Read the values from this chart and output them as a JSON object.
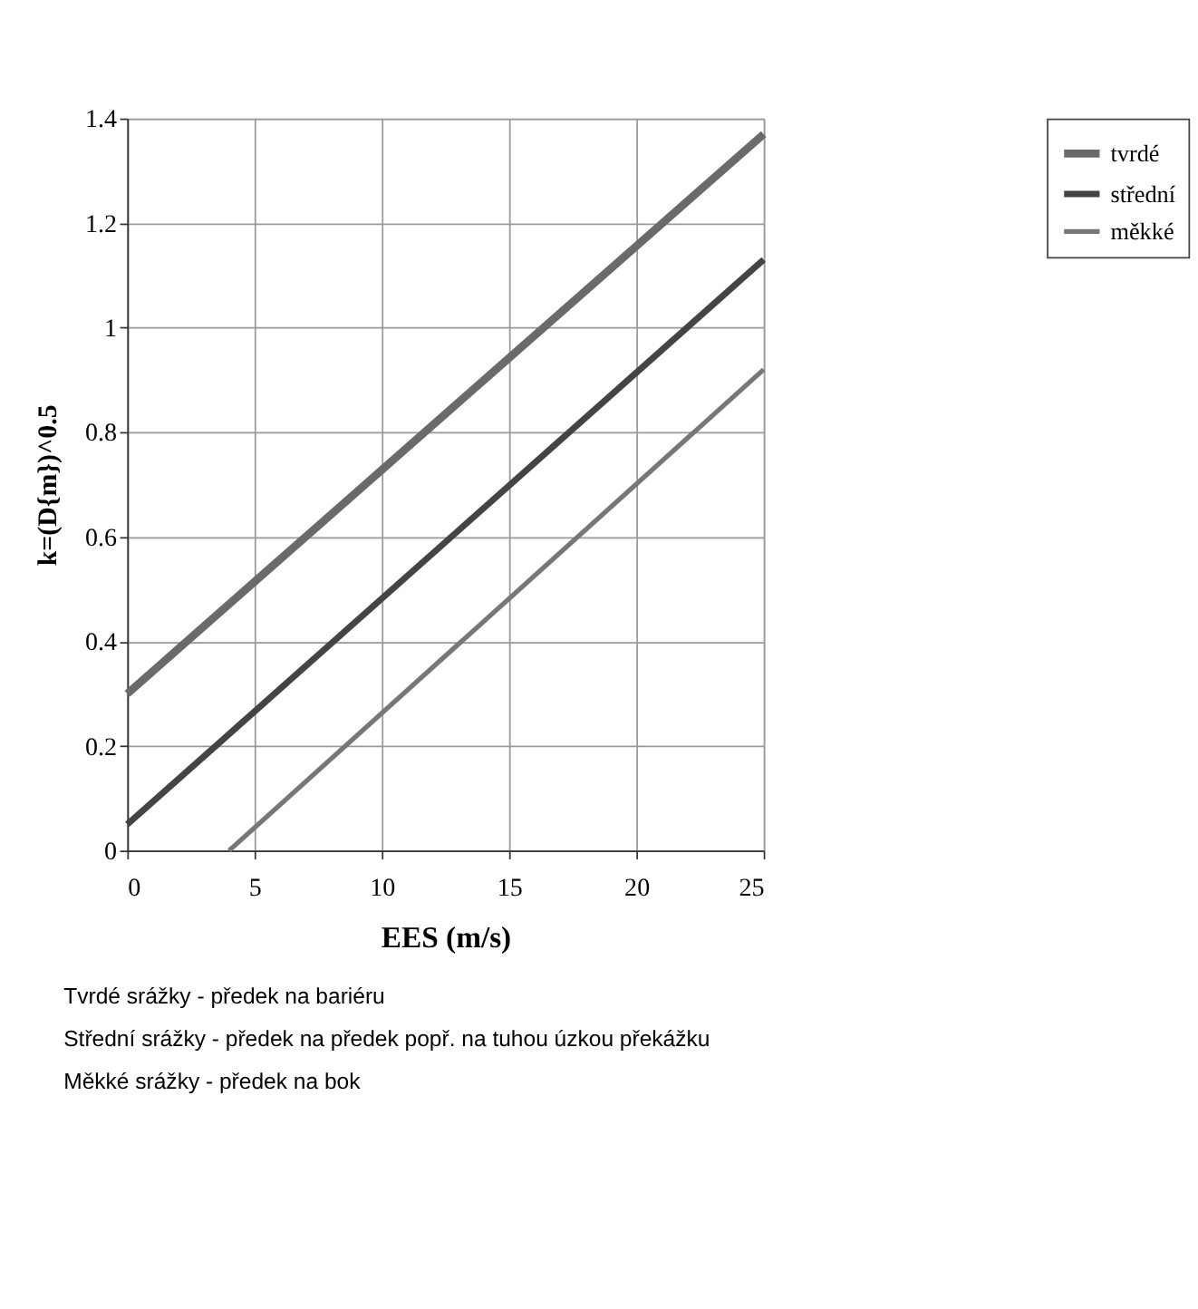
{
  "chart_data": {
    "type": "line",
    "xlabel": "EES  (m/s)",
    "ylabel": "k=(D{m})^0.5",
    "xlim": [
      0,
      25
    ],
    "xticks": [
      0,
      5,
      10,
      15,
      20,
      25
    ],
    "ylim": [
      0,
      1.4
    ],
    "yticks": [
      0,
      0.2,
      0.4,
      0.6,
      0.8,
      1,
      1.2,
      1.4
    ],
    "grid": true,
    "legend": "right",
    "line_style": "solid",
    "marker": "none",
    "series": [
      {
        "name": "tvrdé",
        "color": "#6a6a6a",
        "x": [
          0,
          25
        ],
        "values": [
          0.3,
          1.37
        ]
      },
      {
        "name": "střední",
        "color": "#444444",
        "x": [
          0,
          25
        ],
        "values": [
          0.05,
          1.13
        ]
      },
      {
        "name": "měkké",
        "color": "#777777",
        "x": [
          4,
          25
        ],
        "values": [
          0,
          0.92
        ]
      }
    ],
    "annotations": [
      "Tvrdé srážky - předek na bariéru",
      "Střední srážky - předek na předek popř. na tuhou úzkou překážku",
      "Měkké srážky - předek na bok"
    ]
  }
}
